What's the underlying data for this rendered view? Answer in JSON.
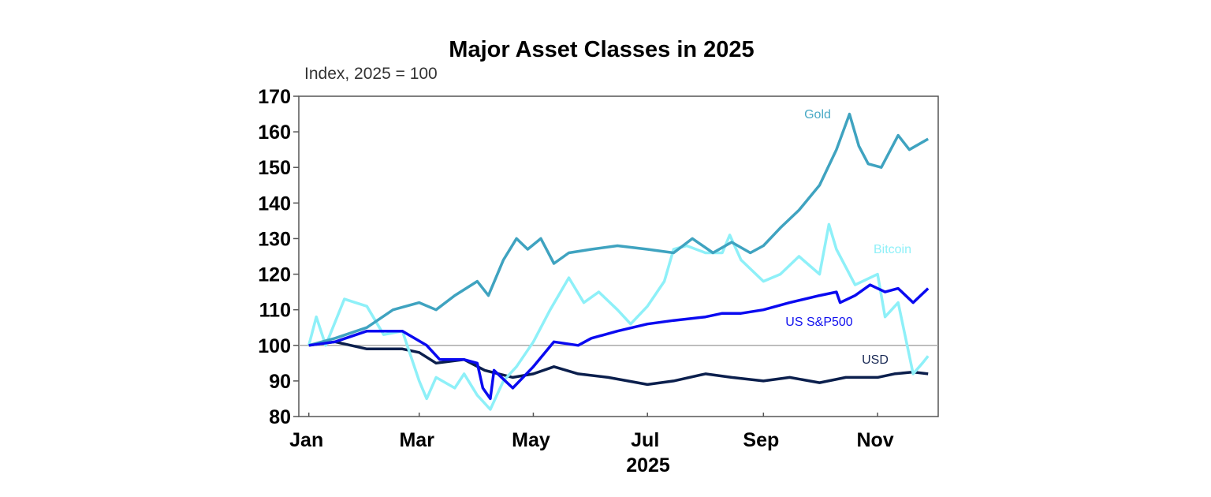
{
  "chart_data": {
    "type": "line",
    "title": "Major Asset Classes in 2025",
    "subtitle": "Index, 2025 = 100",
    "xlabel": "2025",
    "ylabel": "",
    "ylim": [
      80,
      170
    ],
    "yticks": [
      80,
      90,
      100,
      110,
      120,
      130,
      140,
      150,
      160,
      170
    ],
    "xticks": [
      {
        "label": "Jan",
        "date": "2025-01-01"
      },
      {
        "label": "Mar",
        "date": "2025-03-01"
      },
      {
        "label": "May",
        "date": "2025-05-01"
      },
      {
        "label": "Jul",
        "date": "2025-07-01"
      },
      {
        "label": "Sep",
        "date": "2025-09-01"
      },
      {
        "label": "Nov",
        "date": "2025-11-01"
      }
    ],
    "xlim": [
      "2025-01-01",
      "2025-12-05"
    ],
    "reference_line": 100,
    "grid": false,
    "series": [
      {
        "name": "Gold",
        "color": "#3fa3c0",
        "points": [
          [
            "2025-01-01",
            100
          ],
          [
            "2025-01-15",
            102
          ],
          [
            "2025-02-01",
            105
          ],
          [
            "2025-02-15",
            110
          ],
          [
            "2025-03-01",
            112
          ],
          [
            "2025-03-10",
            110
          ],
          [
            "2025-03-20",
            114
          ],
          [
            "2025-04-01",
            118
          ],
          [
            "2025-04-07",
            114
          ],
          [
            "2025-04-15",
            124
          ],
          [
            "2025-04-22",
            130
          ],
          [
            "2025-04-28",
            127
          ],
          [
            "2025-05-05",
            130
          ],
          [
            "2025-05-12",
            123
          ],
          [
            "2025-05-20",
            126
          ],
          [
            "2025-06-01",
            127
          ],
          [
            "2025-06-15",
            128
          ],
          [
            "2025-07-01",
            127
          ],
          [
            "2025-07-15",
            126
          ],
          [
            "2025-07-25",
            130
          ],
          [
            "2025-08-05",
            126
          ],
          [
            "2025-08-15",
            129
          ],
          [
            "2025-08-25",
            126
          ],
          [
            "2025-09-01",
            128
          ],
          [
            "2025-09-10",
            133
          ],
          [
            "2025-09-20",
            138
          ],
          [
            "2025-10-01",
            145
          ],
          [
            "2025-10-10",
            155
          ],
          [
            "2025-10-17",
            165
          ],
          [
            "2025-10-22",
            156
          ],
          [
            "2025-10-27",
            151
          ],
          [
            "2025-11-03",
            150
          ],
          [
            "2025-11-12",
            159
          ],
          [
            "2025-11-18",
            155
          ],
          [
            "2025-11-28",
            158
          ]
        ]
      },
      {
        "name": "Bitcoin",
        "color": "#8ef0f8",
        "points": [
          [
            "2025-01-01",
            100
          ],
          [
            "2025-01-05",
            108
          ],
          [
            "2025-01-10",
            100
          ],
          [
            "2025-01-20",
            113
          ],
          [
            "2025-02-01",
            111
          ],
          [
            "2025-02-10",
            103
          ],
          [
            "2025-02-20",
            104
          ],
          [
            "2025-03-01",
            90
          ],
          [
            "2025-03-05",
            85
          ],
          [
            "2025-03-10",
            91
          ],
          [
            "2025-03-20",
            88
          ],
          [
            "2025-03-25",
            92
          ],
          [
            "2025-04-01",
            86
          ],
          [
            "2025-04-08",
            82
          ],
          [
            "2025-04-15",
            90
          ],
          [
            "2025-04-22",
            94
          ],
          [
            "2025-05-01",
            101
          ],
          [
            "2025-05-10",
            110
          ],
          [
            "2025-05-20",
            119
          ],
          [
            "2025-05-28",
            112
          ],
          [
            "2025-06-05",
            115
          ],
          [
            "2025-06-15",
            110
          ],
          [
            "2025-06-22",
            106
          ],
          [
            "2025-07-01",
            111
          ],
          [
            "2025-07-10",
            118
          ],
          [
            "2025-07-15",
            127
          ],
          [
            "2025-07-22",
            128
          ],
          [
            "2025-08-01",
            126
          ],
          [
            "2025-08-10",
            126
          ],
          [
            "2025-08-14",
            131
          ],
          [
            "2025-08-20",
            124
          ],
          [
            "2025-09-01",
            118
          ],
          [
            "2025-09-10",
            120
          ],
          [
            "2025-09-20",
            125
          ],
          [
            "2025-10-01",
            120
          ],
          [
            "2025-10-06",
            134
          ],
          [
            "2025-10-10",
            127
          ],
          [
            "2025-10-20",
            117
          ],
          [
            "2025-11-01",
            120
          ],
          [
            "2025-11-05",
            108
          ],
          [
            "2025-11-12",
            112
          ],
          [
            "2025-11-20",
            92
          ],
          [
            "2025-11-25",
            95
          ],
          [
            "2025-11-28",
            97
          ]
        ]
      },
      {
        "name": "US S&P500",
        "color": "#0a0af0",
        "points": [
          [
            "2025-01-01",
            100
          ],
          [
            "2025-01-15",
            101
          ],
          [
            "2025-02-01",
            104
          ],
          [
            "2025-02-20",
            104
          ],
          [
            "2025-03-05",
            100
          ],
          [
            "2025-03-12",
            96
          ],
          [
            "2025-03-25",
            96
          ],
          [
            "2025-04-01",
            95
          ],
          [
            "2025-04-04",
            88
          ],
          [
            "2025-04-08",
            85
          ],
          [
            "2025-04-10",
            93
          ],
          [
            "2025-04-20",
            88
          ],
          [
            "2025-05-01",
            94
          ],
          [
            "2025-05-12",
            101
          ],
          [
            "2025-05-25",
            100
          ],
          [
            "2025-06-01",
            102
          ],
          [
            "2025-06-15",
            104
          ],
          [
            "2025-07-01",
            106
          ],
          [
            "2025-07-15",
            107
          ],
          [
            "2025-08-01",
            108
          ],
          [
            "2025-08-10",
            109
          ],
          [
            "2025-08-20",
            109
          ],
          [
            "2025-09-01",
            110
          ],
          [
            "2025-09-15",
            112
          ],
          [
            "2025-10-01",
            114
          ],
          [
            "2025-10-10",
            115
          ],
          [
            "2025-10-12",
            112
          ],
          [
            "2025-10-20",
            114
          ],
          [
            "2025-10-28",
            117
          ],
          [
            "2025-11-05",
            115
          ],
          [
            "2025-11-12",
            116
          ],
          [
            "2025-11-20",
            112
          ],
          [
            "2025-11-28",
            116
          ]
        ]
      },
      {
        "name": "USD",
        "color": "#0b1f4d",
        "points": [
          [
            "2025-01-01",
            100
          ],
          [
            "2025-01-15",
            101
          ],
          [
            "2025-02-01",
            99
          ],
          [
            "2025-02-20",
            99
          ],
          [
            "2025-03-01",
            98
          ],
          [
            "2025-03-10",
            95
          ],
          [
            "2025-03-25",
            96
          ],
          [
            "2025-04-05",
            93
          ],
          [
            "2025-04-20",
            91
          ],
          [
            "2025-05-01",
            92
          ],
          [
            "2025-05-12",
            94
          ],
          [
            "2025-05-25",
            92
          ],
          [
            "2025-06-10",
            91
          ],
          [
            "2025-07-01",
            89
          ],
          [
            "2025-07-15",
            90
          ],
          [
            "2025-08-01",
            92
          ],
          [
            "2025-08-15",
            91
          ],
          [
            "2025-09-01",
            90
          ],
          [
            "2025-09-15",
            91
          ],
          [
            "2025-10-01",
            89.5
          ],
          [
            "2025-10-15",
            91
          ],
          [
            "2025-11-01",
            91
          ],
          [
            "2025-11-10",
            92
          ],
          [
            "2025-11-20",
            92.5
          ],
          [
            "2025-11-28",
            92
          ]
        ]
      }
    ]
  }
}
